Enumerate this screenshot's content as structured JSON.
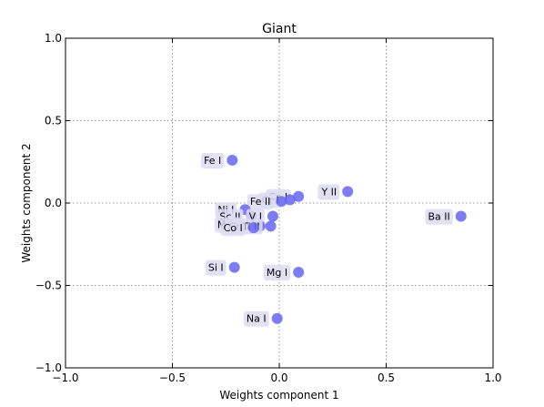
{
  "chart_data": {
    "type": "scatter",
    "title": "Giant",
    "xlabel": "Weights component 1",
    "ylabel": "Weights component 2",
    "xlim": [
      -1.0,
      1.0
    ],
    "ylim": [
      -1.0,
      1.0
    ],
    "xticks": [
      -1.0,
      -0.5,
      0.0,
      0.5,
      1.0
    ],
    "yticks": [
      -1.0,
      -0.5,
      0.0,
      0.5,
      1.0
    ],
    "xtick_labels": [
      "−1.0",
      "−0.5",
      "0.0",
      "0.5",
      "1.0"
    ],
    "ytick_labels": [
      "−1.0",
      "−0.5",
      "0.0",
      "0.5",
      "1.0"
    ],
    "grid": true,
    "point_color": "#6666ee",
    "label_box_color": "#dcdcf2",
    "points": [
      {
        "label": "Fe I",
        "x": -0.22,
        "y": 0.26
      },
      {
        "label": "Y II",
        "x": 0.32,
        "y": 0.07
      },
      {
        "label": "Ba II",
        "x": 0.85,
        "y": -0.08
      },
      {
        "label": "Ca I",
        "x": 0.09,
        "y": 0.04
      },
      {
        "label": "Cr I",
        "x": 0.05,
        "y": 0.02
      },
      {
        "label": "Fe II",
        "x": 0.01,
        "y": 0.01
      },
      {
        "label": "Ni I",
        "x": -0.16,
        "y": -0.04
      },
      {
        "label": "Sc II",
        "x": -0.13,
        "y": -0.08
      },
      {
        "label": "V I",
        "x": -0.03,
        "y": -0.08
      },
      {
        "label": "Mn I",
        "x": -0.14,
        "y": -0.13
      },
      {
        "label": "Cr II",
        "x": -0.09,
        "y": -0.14
      },
      {
        "label": "Ti II",
        "x": -0.04,
        "y": -0.14
      },
      {
        "label": "Co I",
        "x": -0.12,
        "y": -0.15
      },
      {
        "label": "Si I",
        "x": -0.21,
        "y": -0.39
      },
      {
        "label": "Mg I",
        "x": 0.09,
        "y": -0.42
      },
      {
        "label": "Na I",
        "x": -0.01,
        "y": -0.7
      }
    ]
  }
}
